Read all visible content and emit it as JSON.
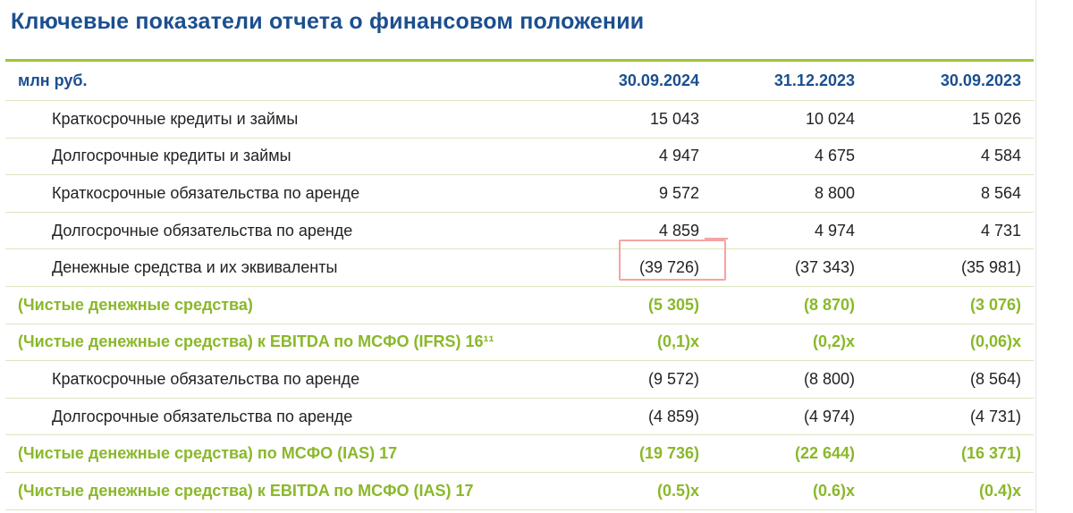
{
  "title": "Ключевые показатели отчета о финансовом положении",
  "header": {
    "unit": "млн руб.",
    "col1": "30.09.2024",
    "col2": "31.12.2023",
    "col3": "30.09.2023"
  },
  "rows": [
    {
      "label": "Краткосрочные кредиты и займы",
      "v1": "15 043",
      "v2": "10 024",
      "v3": "15 026"
    },
    {
      "label": "Долгосрочные кредиты и займы",
      "v1": "4 947",
      "v2": "4 675",
      "v3": "4 584"
    },
    {
      "label": "Краткосрочные обязательства по аренде",
      "v1": "9 572",
      "v2": "8 800",
      "v3": "8 564"
    },
    {
      "label": "Долгосрочные обязательства по аренде",
      "v1": "4 859",
      "v2": "4 974",
      "v3": "4 731"
    },
    {
      "label": "Денежные средства и их эквиваленты",
      "v1": "(39 726)",
      "v2": "(37 343)",
      "v3": "(35 981)"
    },
    {
      "label": "(Чистые денежные средства)",
      "v1": "(5 305)",
      "v2": "(8 870)",
      "v3": "(3 076)"
    },
    {
      "label": "(Чистые денежные средства) к EBITDA по МСФО (IFRS) 16¹¹",
      "v1": "(0,1)x",
      "v2": "(0,2)x",
      "v3": "(0,06)x"
    },
    {
      "label": "Краткосрочные обязательства по аренде",
      "v1": "(9 572)",
      "v2": "(8 800)",
      "v3": "(8 564)"
    },
    {
      "label": "Долгосрочные обязательства по аренде",
      "v1": "(4 859)",
      "v2": "(4 974)",
      "v3": "(4 731)"
    },
    {
      "label": "(Чистые денежные средства) по МСФО (IAS) 17",
      "v1": "(19 736)",
      "v2": "(22 644)",
      "v3": "(16 371)"
    },
    {
      "label": "(Чистые денежные средства) к EBITDA по МСФО (IAS) 17",
      "v1": "(0.5)x",
      "v2": "(0.6)x",
      "v3": "(0.4)x"
    }
  ],
  "colors": {
    "title_blue": "#1b4f8f",
    "total_green": "#8ab82a",
    "rule_green": "#9cc53b",
    "highlight_red": "#f4a3a3"
  }
}
